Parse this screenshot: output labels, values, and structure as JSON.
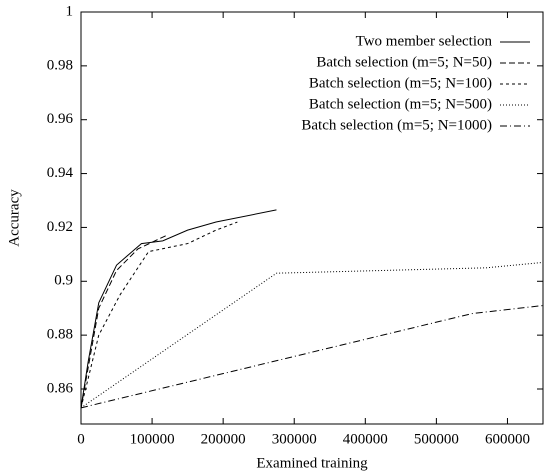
{
  "chart_data": {
    "type": "line",
    "x_label": "Examined training",
    "y_label": "Accuracy",
    "xlim": [
      0,
      650000
    ],
    "ylim": [
      0.847,
      1
    ],
    "xticks": [
      0,
      100000,
      200000,
      300000,
      400000,
      500000,
      600000
    ],
    "yticks": [
      0.86,
      0.88,
      0.9,
      0.92,
      0.94,
      0.96,
      0.98,
      1
    ],
    "legend": "top-right",
    "series": [
      {
        "name": "Two member selection",
        "color": "#000000",
        "dash": "none",
        "x": [
          0,
          10000,
          25000,
          50000,
          85000,
          115000,
          150000,
          190000,
          275000
        ],
        "values": [
          0.853,
          0.87,
          0.892,
          0.906,
          0.914,
          0.915,
          0.919,
          0.922,
          0.9265
        ]
      },
      {
        "name": "Batch selection (m=5; N=50)",
        "color": "#000000",
        "dash": "6,3",
        "x": [
          0,
          25000,
          50000,
          80000,
          120000
        ],
        "values": [
          0.853,
          0.89,
          0.904,
          0.912,
          0.917
        ]
      },
      {
        "name": "Batch selection (m=5; N=100)",
        "color": "#000000",
        "dash": "3,3",
        "x": [
          0,
          25000,
          55000,
          95000,
          150000,
          190000,
          220000
        ],
        "values": [
          0.853,
          0.88,
          0.895,
          0.911,
          0.914,
          0.919,
          0.922
        ]
      },
      {
        "name": "Batch selection (m=5; N=500)",
        "color": "#000000",
        "dash": "1,2",
        "x": [
          0,
          275000,
          570000,
          650000
        ],
        "values": [
          0.853,
          0.903,
          0.905,
          0.907
        ]
      },
      {
        "name": "Batch selection (m=5; N=1000)",
        "color": "#000000",
        "dash": "7,3,1,3",
        "x": [
          0,
          550000,
          650000
        ],
        "values": [
          0.853,
          0.888,
          0.891
        ]
      }
    ]
  }
}
